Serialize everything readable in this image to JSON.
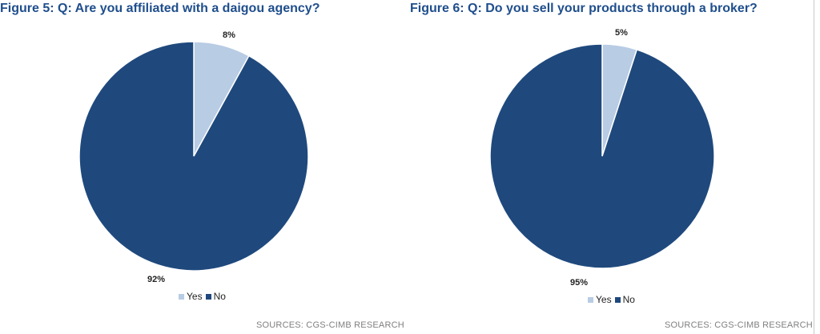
{
  "colors": {
    "title": "#1f4e8c",
    "yes": "#b8cce4",
    "no": "#1f497d"
  },
  "figures": [
    {
      "title": "Figure 5: Q: Are you affiliated with a daigou agency?",
      "source": "SOURCES: CGS-CIMB RESEARCH",
      "legend": [
        {
          "label": "Yes"
        },
        {
          "label": "No"
        }
      ]
    },
    {
      "title": "Figure 6: Q: Do you sell your products through a broker?",
      "source": "SOURCES: CGS-CIMB RESEARCH",
      "legend": [
        {
          "label": "Yes"
        },
        {
          "label": "No"
        }
      ]
    }
  ],
  "chart_data": [
    {
      "type": "pie",
      "title": "Figure 5: Q: Are you affiliated with a daigou agency?",
      "categories": [
        "Yes",
        "No"
      ],
      "values": [
        8,
        92
      ],
      "data_labels": [
        "8%",
        "92%"
      ],
      "legend_position": "bottom"
    },
    {
      "type": "pie",
      "title": "Figure 6: Q: Do you sell your products through a broker?",
      "categories": [
        "Yes",
        "No"
      ],
      "values": [
        5,
        95
      ],
      "data_labels": [
        "5%",
        "95%"
      ],
      "legend_position": "bottom"
    }
  ]
}
